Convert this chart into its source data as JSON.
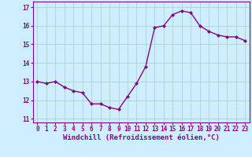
{
  "x": [
    0,
    1,
    2,
    3,
    4,
    5,
    6,
    7,
    8,
    9,
    10,
    11,
    12,
    13,
    14,
    15,
    16,
    17,
    18,
    19,
    20,
    21,
    22,
    23
  ],
  "y": [
    13.0,
    12.9,
    13.0,
    12.7,
    12.5,
    12.4,
    11.8,
    11.8,
    11.6,
    11.5,
    12.2,
    12.9,
    13.8,
    15.9,
    16.0,
    16.6,
    16.8,
    16.7,
    16.0,
    15.7,
    15.5,
    15.4,
    15.4,
    15.2
  ],
  "line_color": "#880088",
  "marker": "D",
  "marker_size": 2,
  "line_width": 1.0,
  "xlabel": "Windchill (Refroidissement éolien,°C)",
  "xlabel_fontsize": 6.5,
  "yticks": [
    11,
    12,
    13,
    14,
    15,
    16,
    17
  ],
  "xtick_labels": [
    "0",
    "1",
    "2",
    "3",
    "4",
    "5",
    "6",
    "7",
    "8",
    "9",
    "10",
    "11",
    "12",
    "13",
    "14",
    "15",
    "16",
    "17",
    "18",
    "19",
    "20",
    "21",
    "22",
    "23"
  ],
  "ylim": [
    10.8,
    17.3
  ],
  "xlim": [
    -0.5,
    23.5
  ],
  "background_color": "#cceeff",
  "grid_color": "#aacccc",
  "tick_fontsize": 5.5,
  "tick_color": "#880088",
  "label_color": "#880088"
}
